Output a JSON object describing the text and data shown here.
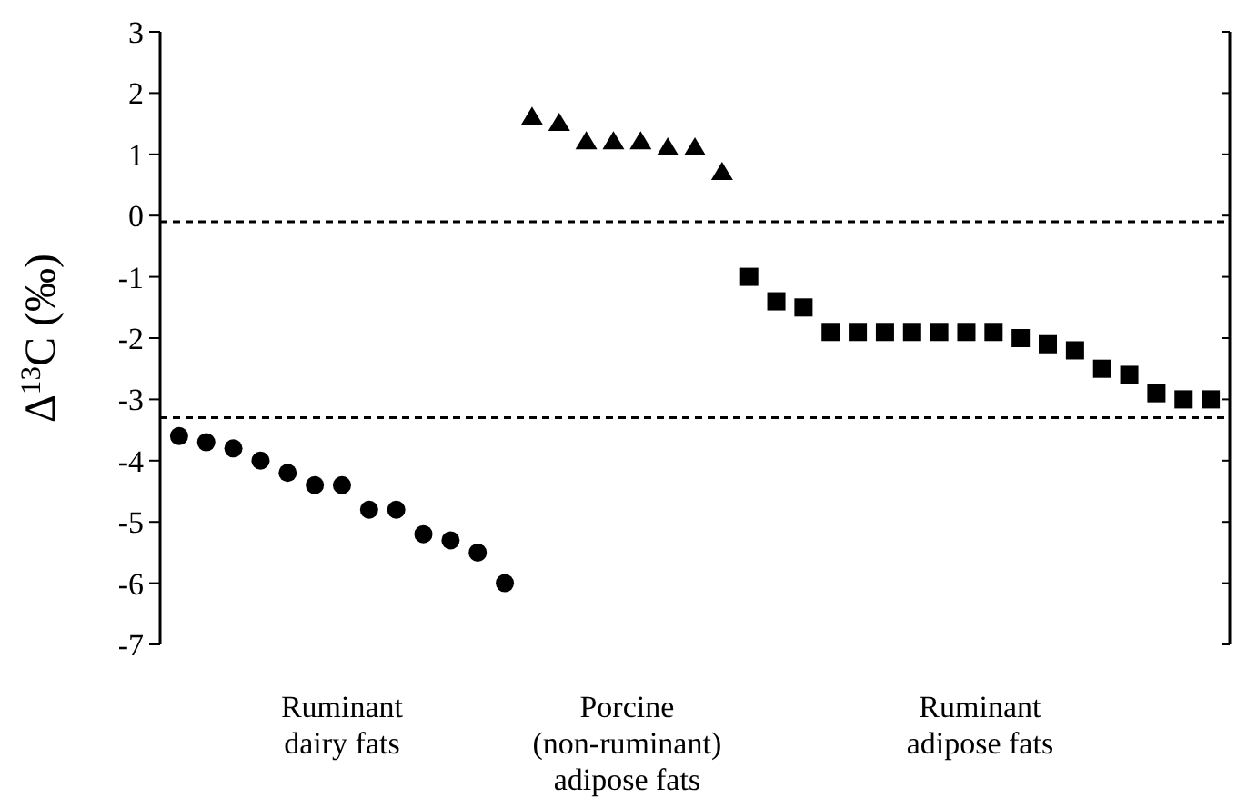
{
  "chart_data": {
    "type": "scatter",
    "ylabel": "Δ$^{13}$C (‰)",
    "categories": [
      null,
      null,
      null,
      null,
      null,
      null,
      null,
      null,
      null,
      null,
      null,
      null,
      null,
      null,
      null,
      null,
      null,
      null,
      null,
      null,
      null,
      null,
      null,
      null,
      null,
      null,
      null,
      null,
      null,
      null,
      null,
      null,
      null,
      null,
      null,
      null,
      null,
      null,
      null
    ],
    "series": [
      {
        "color": "#000000",
        "marker": "circle",
        "values": [
          -3.6,
          -3.7,
          -3.8,
          -4.0,
          -4.2,
          -4.4,
          -4.4,
          -4.8,
          -4.8,
          -5.2,
          -5.3,
          -5.5,
          -6.0,
          null,
          null,
          null,
          null,
          null,
          null,
          null,
          null,
          null,
          null,
          null,
          null,
          null,
          null,
          null,
          null,
          null,
          null,
          null,
          null,
          null,
          null,
          null,
          null,
          null,
          null
        ]
      },
      {
        "color": "#000000",
        "marker": "triangle",
        "values": [
          null,
          null,
          null,
          null,
          null,
          null,
          null,
          null,
          null,
          null,
          null,
          null,
          null,
          1.6,
          1.5,
          1.2,
          1.2,
          1.2,
          1.1,
          1.1,
          0.7,
          null,
          null,
          null,
          null,
          null,
          null,
          null,
          null,
          null,
          null,
          null,
          null,
          null,
          null,
          null,
          null,
          null,
          null
        ]
      },
      {
        "color": "#000000",
        "marker": "square",
        "values": [
          null,
          null,
          null,
          null,
          null,
          null,
          null,
          null,
          null,
          null,
          null,
          null,
          null,
          null,
          null,
          null,
          null,
          null,
          null,
          null,
          null,
          -1.0,
          -1.4,
          -1.5,
          -1.9,
          -1.9,
          -1.9,
          -1.9,
          -1.9,
          -1.9,
          -1.9,
          -2.0,
          -2.1,
          -2.2,
          -2.5,
          -2.6,
          -2.9,
          -3.0,
          -3.0
        ]
      }
    ],
    "ylim": [
      -7,
      3
    ],
    "yticks": [
      -7,
      -6,
      -5,
      -4,
      -3,
      -2,
      -1,
      0,
      1,
      2,
      3
    ],
    "ref_lines": [
      {
        "axis": "y",
        "value": -0.1,
        "line_style": "dashed",
        "color": "#000000"
      },
      {
        "axis": "y",
        "value": -3.3,
        "line_style": "dashed",
        "color": "#000000"
      }
    ],
    "annotations": [
      "Ruminant\ndairy fats",
      "Porcine\n(non-ruminant)\nadipose fats",
      "Ruminant\nadipose fats"
    ],
    "tick_labels": "y",
    "grid": false
  }
}
